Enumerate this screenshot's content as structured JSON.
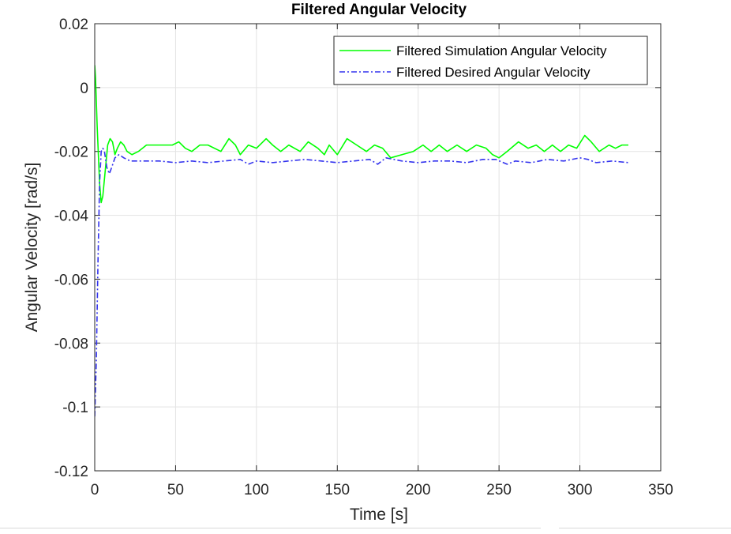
{
  "chart_data": {
    "type": "line",
    "title": "Filtered Angular Velocity",
    "xlabel": "Time [s]",
    "ylabel": "Angular Velocity [rad/s]",
    "xlim": [
      0,
      350
    ],
    "ylim": [
      -0.12,
      0.02
    ],
    "xticks": [
      0,
      50,
      100,
      150,
      200,
      250,
      300,
      350
    ],
    "xtick_labels": [
      "0",
      "50",
      "100",
      "150",
      "200",
      "250",
      "300",
      "350"
    ],
    "yticks": [
      0.02,
      0,
      -0.02,
      -0.04,
      -0.06,
      -0.08,
      -0.1,
      -0.12
    ],
    "ytick_labels": [
      "0.02",
      "0",
      "-0.02",
      "-0.04",
      "-0.06",
      "-0.08",
      "-0.1",
      "-0.12"
    ],
    "grid": true,
    "legend_position": "top-right",
    "series": [
      {
        "name": "Filtered Simulation Angular Velocity",
        "color": "#00ff00",
        "style": "solid",
        "points": [
          [
            0,
            0.007
          ],
          [
            0.5,
            0.003
          ],
          [
            1.5,
            -0.012
          ],
          [
            3,
            -0.03
          ],
          [
            4,
            -0.036
          ],
          [
            5,
            -0.034
          ],
          [
            6.5,
            -0.026
          ],
          [
            8,
            -0.018
          ],
          [
            9.5,
            -0.016
          ],
          [
            11,
            -0.017
          ],
          [
            12.5,
            -0.021
          ],
          [
            14,
            -0.019
          ],
          [
            16,
            -0.017
          ],
          [
            18,
            -0.018
          ],
          [
            20,
            -0.02
          ],
          [
            23,
            -0.021
          ],
          [
            27,
            -0.02
          ],
          [
            32,
            -0.018
          ],
          [
            40,
            -0.018
          ],
          [
            48,
            -0.018
          ],
          [
            52,
            -0.017
          ],
          [
            56,
            -0.019
          ],
          [
            60,
            -0.02
          ],
          [
            65,
            -0.018
          ],
          [
            70,
            -0.018
          ],
          [
            78,
            -0.02
          ],
          [
            83,
            -0.016
          ],
          [
            87,
            -0.018
          ],
          [
            90,
            -0.021
          ],
          [
            95,
            -0.018
          ],
          [
            100,
            -0.019
          ],
          [
            106,
            -0.016
          ],
          [
            110,
            -0.018
          ],
          [
            115,
            -0.02
          ],
          [
            120,
            -0.018
          ],
          [
            127,
            -0.02
          ],
          [
            132,
            -0.017
          ],
          [
            138,
            -0.019
          ],
          [
            142,
            -0.021
          ],
          [
            145,
            -0.018
          ],
          [
            150,
            -0.021
          ],
          [
            156,
            -0.016
          ],
          [
            162,
            -0.018
          ],
          [
            168,
            -0.02
          ],
          [
            173,
            -0.018
          ],
          [
            178,
            -0.019
          ],
          [
            183,
            -0.022
          ],
          [
            190,
            -0.021
          ],
          [
            197,
            -0.02
          ],
          [
            203,
            -0.018
          ],
          [
            208,
            -0.02
          ],
          [
            213,
            -0.018
          ],
          [
            218,
            -0.02
          ],
          [
            224,
            -0.018
          ],
          [
            230,
            -0.02
          ],
          [
            236,
            -0.018
          ],
          [
            242,
            -0.019
          ],
          [
            246,
            -0.021
          ],
          [
            250,
            -0.022
          ],
          [
            255,
            -0.02
          ],
          [
            262,
            -0.017
          ],
          [
            268,
            -0.019
          ],
          [
            273,
            -0.018
          ],
          [
            278,
            -0.02
          ],
          [
            283,
            -0.018
          ],
          [
            288,
            -0.02
          ],
          [
            293,
            -0.018
          ],
          [
            298,
            -0.019
          ],
          [
            303,
            -0.015
          ],
          [
            307,
            -0.017
          ],
          [
            312,
            -0.02
          ],
          [
            318,
            -0.018
          ],
          [
            322,
            -0.019
          ],
          [
            326,
            -0.018
          ],
          [
            330,
            -0.018
          ]
        ]
      },
      {
        "name": "Filtered Desired Angular Velocity",
        "color": "#3333ee",
        "style": "dashdot",
        "points": [
          [
            0,
            -0.103
          ],
          [
            1,
            -0.085
          ],
          [
            2,
            -0.055
          ],
          [
            3,
            -0.03
          ],
          [
            4,
            -0.02
          ],
          [
            5,
            -0.019
          ],
          [
            6,
            -0.02
          ],
          [
            7.5,
            -0.025
          ],
          [
            9,
            -0.027
          ],
          [
            10.5,
            -0.025
          ],
          [
            12.5,
            -0.022
          ],
          [
            15,
            -0.021
          ],
          [
            18,
            -0.022
          ],
          [
            22,
            -0.023
          ],
          [
            30,
            -0.023
          ],
          [
            40,
            -0.023
          ],
          [
            50,
            -0.0235
          ],
          [
            60,
            -0.023
          ],
          [
            70,
            -0.0235
          ],
          [
            80,
            -0.023
          ],
          [
            90,
            -0.0225
          ],
          [
            95,
            -0.024
          ],
          [
            100,
            -0.023
          ],
          [
            110,
            -0.0235
          ],
          [
            120,
            -0.023
          ],
          [
            130,
            -0.0225
          ],
          [
            140,
            -0.023
          ],
          [
            150,
            -0.0235
          ],
          [
            160,
            -0.023
          ],
          [
            170,
            -0.0225
          ],
          [
            175,
            -0.024
          ],
          [
            180,
            -0.022
          ],
          [
            185,
            -0.0225
          ],
          [
            190,
            -0.023
          ],
          [
            200,
            -0.0235
          ],
          [
            210,
            -0.023
          ],
          [
            220,
            -0.023
          ],
          [
            230,
            -0.0235
          ],
          [
            240,
            -0.0225
          ],
          [
            248,
            -0.0225
          ],
          [
            255,
            -0.024
          ],
          [
            260,
            -0.023
          ],
          [
            270,
            -0.0235
          ],
          [
            280,
            -0.0225
          ],
          [
            290,
            -0.023
          ],
          [
            300,
            -0.022
          ],
          [
            305,
            -0.0225
          ],
          [
            310,
            -0.0235
          ],
          [
            320,
            -0.023
          ],
          [
            330,
            -0.0235
          ]
        ]
      }
    ]
  }
}
